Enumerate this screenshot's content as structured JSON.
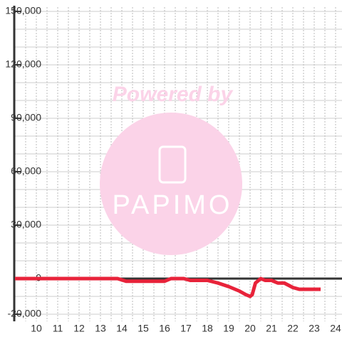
{
  "chart_data": {
    "type": "line",
    "annotations": [
      "Powered by",
      "PAPIMO"
    ],
    "x": [
      9,
      13.8,
      14.2,
      15,
      16,
      16.3,
      16.9,
      17.2,
      18,
      18.5,
      19,
      19.5,
      19.8,
      20,
      20.1,
      20.25,
      20.5,
      20.7,
      21,
      21.3,
      21.6,
      22,
      22.3,
      23.3
    ],
    "series": [
      {
        "color": "#e8233a",
        "values": [
          0,
          0,
          -1500,
          -1500,
          -1500,
          0,
          0,
          -1000,
          -1000,
          -2500,
          -4500,
          -7000,
          -9000,
          -10000,
          -9000,
          -2500,
          0,
          -1000,
          -1000,
          -2500,
          -2500,
          -5000,
          -6000,
          -6000
        ]
      }
    ],
    "xlim": [
      9,
      24.3
    ],
    "ylim": [
      -24000,
      150000
    ],
    "xticks": [
      10,
      11,
      12,
      13,
      14,
      15,
      16,
      17,
      18,
      19,
      20,
      21,
      22,
      23,
      24
    ],
    "yticks": [
      {
        "value": -20000,
        "label": "-20,000"
      },
      0,
      {
        "value": 30000,
        "label": "30,000"
      },
      {
        "value": 60000,
        "label": "60,000"
      },
      {
        "value": 90000,
        "label": "90,000"
      },
      {
        "value": 120000,
        "label": "120,000"
      },
      {
        "value": 150000,
        "label": "150,000"
      }
    ],
    "ygrid": [
      -20000,
      -10000,
      0,
      10000,
      20000,
      30000,
      40000,
      50000,
      60000,
      70000,
      80000,
      90000,
      100000,
      110000,
      120000,
      130000,
      140000,
      150000
    ],
    "xgrid": [
      9.5,
      10,
      10.5,
      11,
      11.5,
      12,
      12.5,
      13,
      13.5,
      14,
      14.5,
      15,
      15.5,
      16,
      16.5,
      17,
      17.5,
      18,
      18.5,
      19,
      19.5,
      20,
      20.5,
      21,
      21.5,
      22,
      22.5,
      23,
      23.5,
      24
    ],
    "grid": true
  }
}
